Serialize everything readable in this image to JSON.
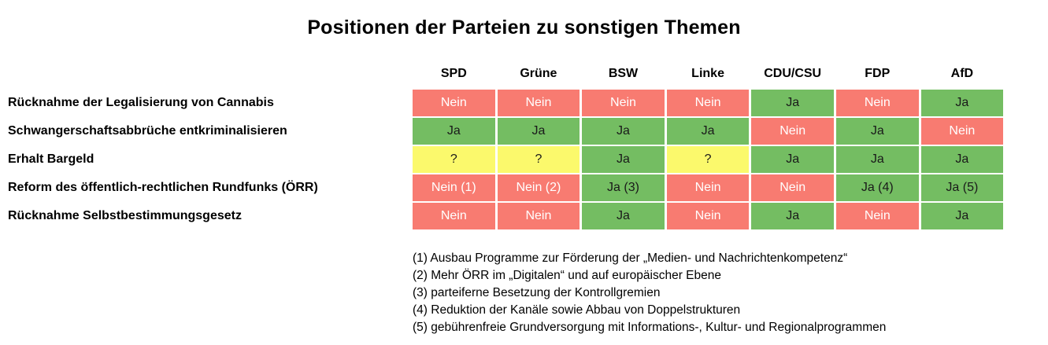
{
  "title": "Positionen der Parteien zu sonstigen Themen",
  "chart_data": {
    "type": "table",
    "columns": [
      "SPD",
      "Grüne",
      "BSW",
      "Linke",
      "CDU/CSU",
      "FDP",
      "AfD"
    ],
    "rows": [
      {
        "label": "Rücknahme der Legalisierung von Cannabis",
        "cells": [
          {
            "text": "Nein",
            "state": "no"
          },
          {
            "text": "Nein",
            "state": "no"
          },
          {
            "text": "Nein",
            "state": "no"
          },
          {
            "text": "Nein",
            "state": "no"
          },
          {
            "text": "Ja",
            "state": "yes"
          },
          {
            "text": "Nein",
            "state": "no"
          },
          {
            "text": "Ja",
            "state": "yes"
          }
        ]
      },
      {
        "label": "Schwangerschaftsabbrüche entkriminalisieren",
        "cells": [
          {
            "text": "Ja",
            "state": "yes"
          },
          {
            "text": "Ja",
            "state": "yes"
          },
          {
            "text": "Ja",
            "state": "yes"
          },
          {
            "text": "Ja",
            "state": "yes"
          },
          {
            "text": "Nein",
            "state": "no"
          },
          {
            "text": "Ja",
            "state": "yes"
          },
          {
            "text": "Nein",
            "state": "no"
          }
        ]
      },
      {
        "label": "Erhalt Bargeld",
        "cells": [
          {
            "text": "?",
            "state": "unknown"
          },
          {
            "text": "?",
            "state": "unknown"
          },
          {
            "text": "Ja",
            "state": "yes"
          },
          {
            "text": "?",
            "state": "unknown"
          },
          {
            "text": "Ja",
            "state": "yes"
          },
          {
            "text": "Ja",
            "state": "yes"
          },
          {
            "text": "Ja",
            "state": "yes"
          }
        ]
      },
      {
        "label": "Reform des öffentlich-rechtlichen Rundfunks (ÖRR)",
        "cells": [
          {
            "text": "Nein (1)",
            "state": "no"
          },
          {
            "text": "Nein (2)",
            "state": "no"
          },
          {
            "text": "Ja (3)",
            "state": "yes"
          },
          {
            "text": "Nein",
            "state": "no"
          },
          {
            "text": "Nein",
            "state": "no"
          },
          {
            "text": "Ja (4)",
            "state": "yes"
          },
          {
            "text": "Ja (5)",
            "state": "yes"
          }
        ]
      },
      {
        "label": "Rücknahme Selbstbestimmungsgesetz",
        "cells": [
          {
            "text": "Nein",
            "state": "no"
          },
          {
            "text": "Nein",
            "state": "no"
          },
          {
            "text": "Ja",
            "state": "yes"
          },
          {
            "text": "Nein",
            "state": "no"
          },
          {
            "text": "Ja",
            "state": "yes"
          },
          {
            "text": "Nein",
            "state": "no"
          },
          {
            "text": "Ja",
            "state": "yes"
          }
        ]
      }
    ],
    "legend": {
      "yes_label": "Ja",
      "no_label": "Nein",
      "unknown_label": "?"
    }
  },
  "footnotes": [
    "(1) Ausbau Programme zur Förderung der „Medien- und Nachrichtenkompetenz“",
    "(2) Mehr ÖRR im „Digitalen“ und auf europäischer Ebene",
    "(3) parteiferne Besetzung der Kontrollgremien",
    "(4) Reduktion der Kanäle sowie Abbau von Doppelstrukturen",
    "(5) gebührenfreie Grundversorgung mit Informations-, Kultur- und Regionalprogrammen"
  ],
  "colors": {
    "yes": "#74bd62",
    "no": "#f87b71",
    "unknown": "#fbf96c",
    "text_dark": "#1a1a1a",
    "text_light": "#ffffff",
    "background": "#ffffff"
  }
}
